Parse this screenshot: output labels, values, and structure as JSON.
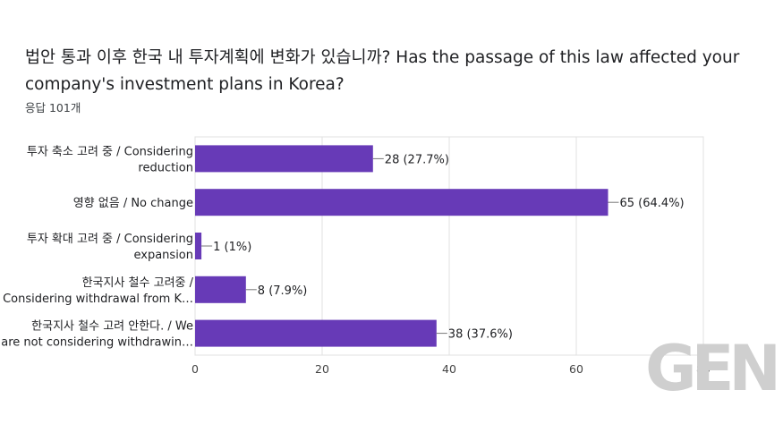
{
  "header": {
    "title": "법안 통과 이후 한국 내 투자계획에 변화가 있습니까? Has the passage of this law affected your company's investment plans in Korea?",
    "responses": "응답 101개"
  },
  "watermark": {
    "text": "GEN"
  },
  "chart_data": {
    "type": "bar",
    "orientation": "horizontal",
    "title": "법안 통과 이후 한국 내 투자계획에 변화가 있습니까? Has the passage of this law affected your company's investment plans in Korea?",
    "categories": [
      [
        "투자 축소 고려 중 / Considering",
        "reduction"
      ],
      [
        "영향 없음 / No change"
      ],
      [
        "투자 확대 고려 중 / Considering",
        "expansion"
      ],
      [
        "한국지사 철수 고려중 /",
        "Considering withdrawal from K…"
      ],
      [
        "한국지사 철수 고려 안한다. / We",
        "are not considering withdrawin…"
      ]
    ],
    "values": [
      28,
      65,
      1,
      8,
      38
    ],
    "data_labels": [
      "28 (27.7%)",
      "65 (64.4%)",
      "1 (1%)",
      "8 (7.9%)",
      "38 (37.6%)"
    ],
    "xlim": [
      0,
      80
    ],
    "xticks": [
      0,
      20,
      40,
      60,
      80
    ],
    "bar_color": "#673ab7",
    "grid": true
  }
}
